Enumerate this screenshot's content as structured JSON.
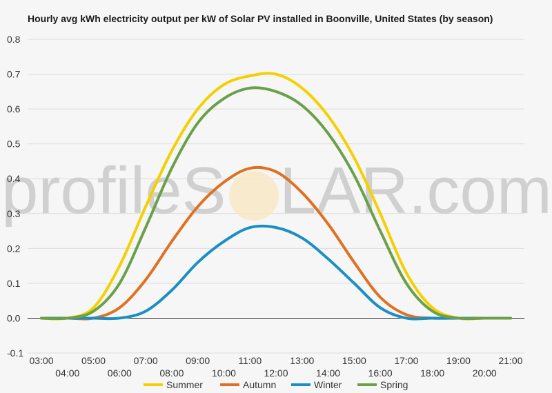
{
  "chart_data": {
    "type": "line",
    "title": "Hourly avg kWh electricity output per kW of Solar PV installed in Boonville, United States (by season)",
    "xlabel": "",
    "ylabel": "",
    "ylim": [
      -0.1,
      0.8
    ],
    "yticks": [
      "0.8",
      "0.7",
      "0.6",
      "0.5",
      "0.4",
      "0.3",
      "0.2",
      "0.1",
      "0.0",
      "-0.1"
    ],
    "ytick_values": [
      0.8,
      0.7,
      0.6,
      0.5,
      0.4,
      0.3,
      0.2,
      0.1,
      0.0,
      -0.1
    ],
    "x_hours": [
      3,
      4,
      5,
      6,
      7,
      8,
      9,
      10,
      11,
      12,
      13,
      14,
      15,
      16,
      17,
      18,
      19,
      20,
      21
    ],
    "xtick_labels": [
      "03:00",
      "04:00",
      "05:00",
      "06:00",
      "07:00",
      "08:00",
      "09:00",
      "10:00",
      "11:00",
      "12:00",
      "13:00",
      "14:00",
      "15:00",
      "16:00",
      "17:00",
      "18:00",
      "19:00",
      "20:00",
      "21:00"
    ],
    "grid": true,
    "legend_position": "bottom",
    "watermark": {
      "left": "profileS",
      "right": "LAR.com"
    },
    "series": [
      {
        "name": "Summer",
        "color": "#f5d000",
        "values": [
          0.0,
          0.0,
          0.03,
          0.15,
          0.32,
          0.48,
          0.6,
          0.67,
          0.695,
          0.7,
          0.66,
          0.58,
          0.46,
          0.3,
          0.13,
          0.03,
          0.0,
          0.0,
          0.0
        ]
      },
      {
        "name": "Autumn",
        "color": "#e07020",
        "values": [
          0.0,
          0.0,
          0.0,
          0.03,
          0.11,
          0.22,
          0.32,
          0.39,
          0.43,
          0.42,
          0.36,
          0.27,
          0.16,
          0.06,
          0.01,
          0.0,
          0.0,
          0.0,
          0.0
        ]
      },
      {
        "name": "Winter",
        "color": "#1b8fc4",
        "values": [
          0.0,
          0.0,
          0.0,
          0.0,
          0.02,
          0.08,
          0.16,
          0.22,
          0.26,
          0.26,
          0.23,
          0.17,
          0.1,
          0.03,
          0.0,
          0.0,
          0.0,
          0.0,
          0.0
        ]
      },
      {
        "name": "Spring",
        "color": "#6aa04a",
        "values": [
          0.0,
          0.0,
          0.02,
          0.1,
          0.26,
          0.43,
          0.56,
          0.63,
          0.66,
          0.65,
          0.61,
          0.53,
          0.41,
          0.25,
          0.1,
          0.02,
          0.0,
          0.0,
          0.0
        ]
      }
    ]
  }
}
